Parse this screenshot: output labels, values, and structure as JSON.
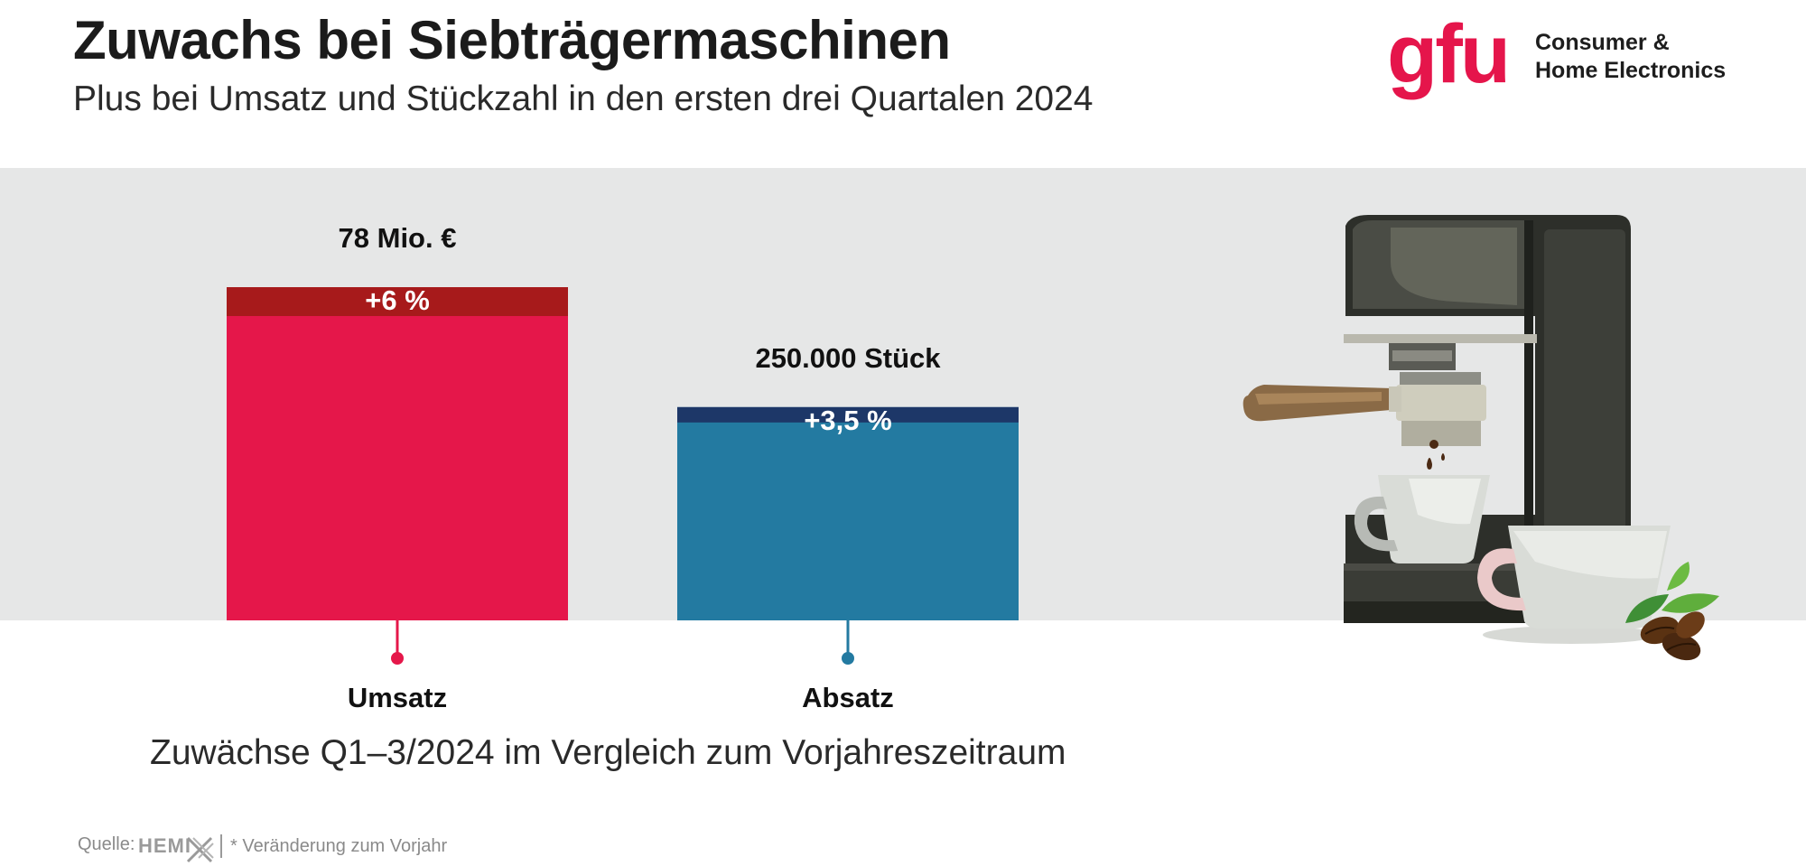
{
  "header": {
    "title": "Zuwachs bei Siebträgermaschinen",
    "subtitle": "Plus bei Umsatz und Stückzahl in den ersten drei Quartalen 2024"
  },
  "logo": {
    "mark": "gfu",
    "line1": "Consumer &",
    "line2": "Home Electronics"
  },
  "chart_data": {
    "type": "bar",
    "categories": [
      "Umsatz",
      "Absatz"
    ],
    "values": [
      78,
      250000
    ],
    "value_labels": [
      "78 Mio. €",
      "250.000 Stück"
    ],
    "change_labels": [
      "+6 %",
      "+3,5 %"
    ],
    "change_values": [
      6,
      3.5
    ],
    "bar_heights_relative": [
      1.0,
      0.64
    ],
    "title": "Zuwachs bei Siebträgermaschinen",
    "caption": "Zuwächse Q1–3/2024 im Vergleich zum Vorjahreszeitraum",
    "colors": {
      "umsatz_bar": "#e5174a",
      "umsatz_cap": "#a71a1b",
      "absatz_bar": "#237aa1",
      "absatz_cap": "#1d3768"
    }
  },
  "footer": {
    "source_label": "Quelle:",
    "source_name": "HEMI",
    "footnote": "* Veränderung zum Vorjahr"
  },
  "colors": {
    "brand": "#e5154b",
    "band": "#e6e7e7"
  }
}
